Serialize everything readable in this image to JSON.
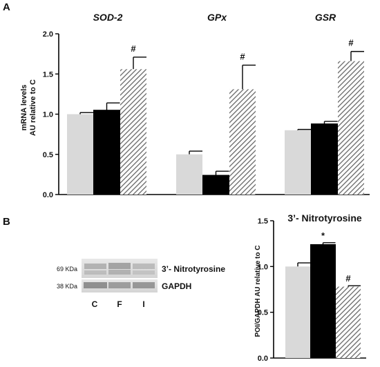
{
  "panels": {
    "a_label": "A",
    "b_label": "B"
  },
  "colors": {
    "C": "#d9d9d9",
    "F": "#000000",
    "I_hatch": "#666666",
    "axis": "#000000"
  },
  "chart_data": [
    {
      "type": "bar",
      "panel": "A",
      "title": "",
      "ylabel_line1": "mRNA levels",
      "ylabel_line2": "AU relative to C",
      "xlabel": "",
      "ylim": [
        0,
        2.0
      ],
      "yticks": [
        "0.0",
        "0.5",
        "1.0",
        "1.5",
        "2.0"
      ],
      "ytick_values": [
        0,
        0.5,
        1.0,
        1.5,
        2.0
      ],
      "categories": [
        "SOD-2",
        "GPx",
        "GSR"
      ],
      "series": [
        {
          "group": "C",
          "fill": "light-gray",
          "values": [
            1.0,
            0.5,
            0.8
          ],
          "errors": [
            0.02,
            0.04,
            0.01
          ]
        },
        {
          "group": "F",
          "fill": "black",
          "values": [
            1.05,
            0.24,
            0.88
          ],
          "errors": [
            0.09,
            0.05,
            0.03
          ]
        },
        {
          "group": "I",
          "fill": "hatched",
          "values": [
            1.56,
            1.31,
            1.66
          ],
          "errors": [
            0.15,
            0.3,
            0.12
          ]
        }
      ],
      "annotations": [
        {
          "category": "SOD-2",
          "group": "I",
          "text": "#"
        },
        {
          "category": "GPx",
          "group": "I",
          "text": "#"
        },
        {
          "category": "GSR",
          "group": "I",
          "text": "#"
        }
      ],
      "grid": false,
      "legend": "none"
    },
    {
      "type": "bar",
      "panel": "B",
      "title": "3’- Nitrotyrosine",
      "ylabel": "POI/GAPDH AU relative to C",
      "xlabel": "",
      "ylim": [
        0,
        1.5
      ],
      "yticks": [
        "0.0",
        "0.5",
        "1.0",
        "1.5"
      ],
      "ytick_values": [
        0,
        0.5,
        1.0,
        1.5
      ],
      "categories": [
        "C",
        "F",
        "I"
      ],
      "values": [
        1.0,
        1.24,
        0.78
      ],
      "errors": [
        0.04,
        0.02,
        0.01
      ],
      "fills": [
        "light-gray",
        "black",
        "hatched"
      ],
      "annotations": [
        {
          "category": "F",
          "text": "*"
        },
        {
          "category": "I",
          "text": "#"
        }
      ],
      "grid": false,
      "legend": "none"
    }
  ],
  "western_blot": {
    "rows": [
      {
        "kda": "69 KDa",
        "protein": "3’- Nitrotyrosine"
      },
      {
        "kda": "38 KDa",
        "protein": "GAPDH"
      }
    ],
    "lanes": [
      "C",
      "F",
      "I"
    ]
  }
}
